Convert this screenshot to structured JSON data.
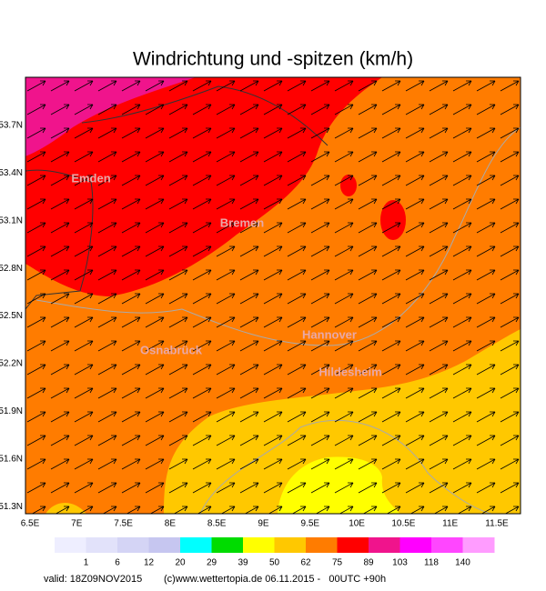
{
  "title": "Windrichtung und -spitzen (km/h)",
  "cities": [
    "Emden",
    "Bremen",
    "Osnabrück",
    "Hannover",
    "Hildesheim"
  ],
  "lon_labels": [
    "6.5E",
    "7E",
    "7.5E",
    "8E",
    "8.5E",
    "9E",
    "9.5E",
    "10E",
    "10.5E",
    "11E",
    "11.5E"
  ],
  "lat_labels": [
    "53.7N",
    "53.4N",
    "53.1N",
    "52.8N",
    "52.5N",
    "52.2N",
    "51.9N",
    "51.6N",
    "51.3N"
  ],
  "legend": {
    "colors": [
      "#eeeeff",
      "#e2e2fa",
      "#d4d4f5",
      "#c6c6f0",
      "#00ffff",
      "#00dc00",
      "#ffff00",
      "#ffc800",
      "#ff7c00",
      "#ff0000",
      "#f0148c",
      "#ff00ff",
      "#ff46ff",
      "#ff9cff"
    ],
    "labels": [
      1,
      6,
      12,
      20,
      29,
      39,
      50,
      62,
      75,
      89,
      103,
      118,
      140
    ]
  },
  "footer": {
    "valid": "valid: 18Z09NOV2015",
    "source": "(c)www.wettertopia.de 06.11.2015 -   00UTC +90h"
  }
}
